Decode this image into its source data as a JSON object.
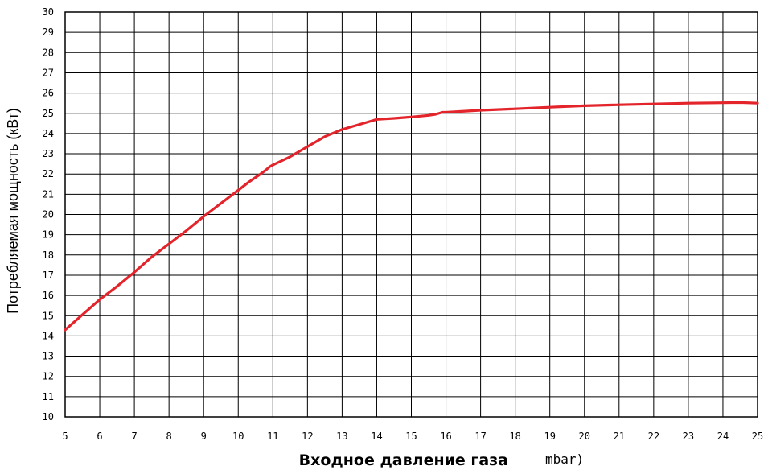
{
  "chart_data": {
    "type": "line",
    "xlabel": "Входное давление газа",
    "xunit": "mbar)",
    "ylabel": "Потребляемая мощность (кВт)",
    "xlim": [
      5,
      25
    ],
    "ylim": [
      10,
      30
    ],
    "x_ticks": [
      "5",
      "6",
      "7",
      "8",
      "9",
      "10",
      "11",
      "12",
      "13",
      "14",
      "15",
      "16",
      "17",
      "18",
      "19",
      "20",
      "21",
      "22",
      "23",
      "24",
      "25"
    ],
    "y_ticks": [
      "10",
      "11",
      "12",
      "13",
      "14",
      "15",
      "16",
      "17",
      "18",
      "19",
      "20",
      "21",
      "22",
      "23",
      "24",
      "25",
      "26",
      "27",
      "28",
      "29",
      "30"
    ],
    "grid": true,
    "series": [
      {
        "color": "#e3242b",
        "x": [
          5,
          5.5,
          6,
          6.5,
          7,
          7.5,
          8,
          8.5,
          9,
          9.5,
          10,
          10.3,
          10.6,
          10.8,
          10.9,
          11,
          11.5,
          12,
          12.5,
          13,
          13.5,
          13.9,
          14,
          14.5,
          15,
          15.5,
          15.7,
          15.9,
          16,
          17,
          18,
          19,
          20,
          21,
          22,
          23,
          24,
          24.5,
          25
        ],
        "y": [
          14.3,
          15.05,
          15.8,
          16.45,
          17.15,
          17.9,
          18.55,
          19.2,
          19.9,
          20.55,
          21.2,
          21.6,
          21.95,
          22.2,
          22.35,
          22.45,
          22.85,
          23.35,
          23.85,
          24.2,
          24.45,
          24.65,
          24.7,
          24.75,
          24.82,
          24.9,
          24.95,
          25.05,
          25.05,
          25.15,
          25.22,
          25.3,
          25.37,
          25.42,
          25.46,
          25.5,
          25.52,
          25.53,
          25.5
        ]
      }
    ]
  }
}
